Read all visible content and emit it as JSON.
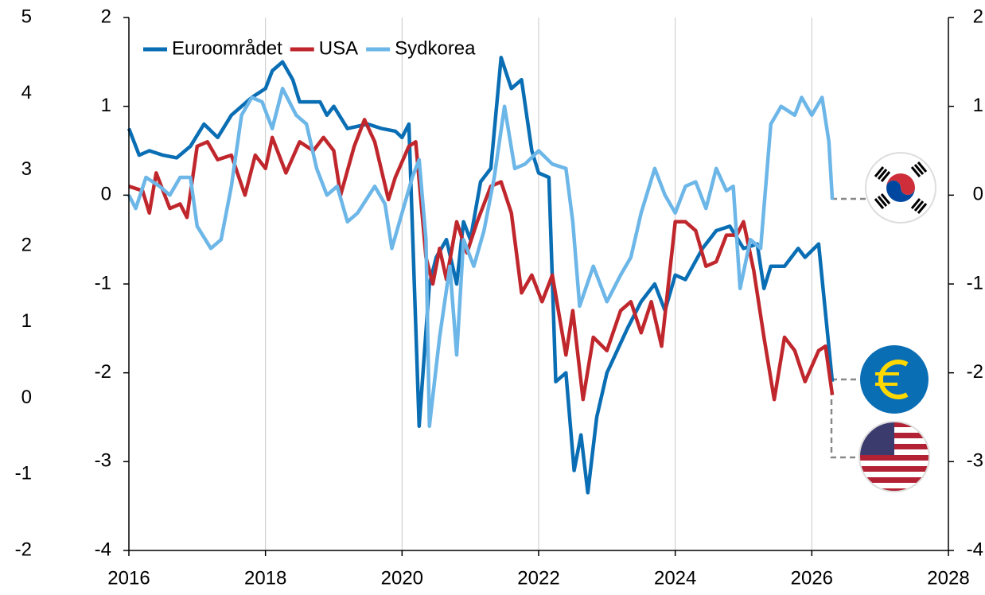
{
  "chart_data": {
    "type": "line",
    "xlim": [
      2016,
      2028
    ],
    "xticks": [
      2016,
      2018,
      2020,
      2022,
      2024,
      2026,
      2028
    ],
    "ylim": [
      -4,
      2
    ],
    "yticks": [
      2,
      1,
      0,
      -1,
      -2,
      -3,
      -4
    ],
    "y2lim": [
      -4,
      2
    ],
    "y2ticks": [
      2,
      1,
      0,
      -1,
      -2,
      -3,
      -4
    ],
    "y3lim": [
      -2,
      5
    ],
    "y3ticks": [
      5,
      4,
      3,
      2,
      1,
      0,
      -1,
      -2
    ],
    "grid": true,
    "legend": "upper left",
    "series": [
      {
        "name": "Euroområdet",
        "color": "#0a6eb4",
        "x": [
          2016.0,
          2016.15,
          2016.3,
          2016.5,
          2016.7,
          2016.9,
          2017.1,
          2017.3,
          2017.5,
          2017.8,
          2018.0,
          2018.1,
          2018.25,
          2018.4,
          2018.5,
          2018.8,
          2018.9,
          2019.0,
          2019.2,
          2019.5,
          2019.7,
          2019.9,
          2020.0,
          2020.1,
          2020.25,
          2020.4,
          2020.5,
          2020.65,
          2020.8,
          2020.9,
          2021.0,
          2021.15,
          2021.3,
          2021.45,
          2021.6,
          2021.75,
          2021.9,
          2022.0,
          2022.15,
          2022.25,
          2022.4,
          2022.52,
          2022.62,
          2022.72,
          2022.85,
          2023.0,
          2023.3,
          2023.5,
          2023.7,
          2023.85,
          2024.0,
          2024.15,
          2024.4,
          2024.6,
          2024.8,
          2025.0,
          2025.2,
          2025.3,
          2025.4,
          2025.6,
          2025.8,
          2025.9,
          2026.1,
          2026.3
        ],
        "values": [
          0.75,
          0.45,
          0.5,
          0.45,
          0.42,
          0.55,
          0.8,
          0.65,
          0.9,
          1.1,
          1.2,
          1.4,
          1.5,
          1.3,
          1.05,
          1.05,
          0.9,
          1.0,
          0.75,
          0.8,
          0.75,
          0.72,
          0.65,
          0.8,
          -2.6,
          -1.0,
          -0.7,
          -0.5,
          -1.0,
          -0.3,
          -0.5,
          0.15,
          0.3,
          1.55,
          1.2,
          1.3,
          0.5,
          0.25,
          0.2,
          -2.1,
          -2.0,
          -3.1,
          -2.7,
          -3.35,
          -2.5,
          -2.0,
          -1.5,
          -1.2,
          -1.0,
          -1.3,
          -0.9,
          -0.95,
          -0.6,
          -0.4,
          -0.35,
          -0.6,
          -0.55,
          -1.05,
          -0.8,
          -0.8,
          -0.6,
          -0.7,
          -0.55,
          -2.1
        ]
      },
      {
        "name": "USA",
        "color": "#c0272d",
        "x": [
          2016.0,
          2016.2,
          2016.3,
          2016.4,
          2016.6,
          2016.75,
          2016.85,
          2017.0,
          2017.15,
          2017.3,
          2017.5,
          2017.7,
          2017.85,
          2018.0,
          2018.1,
          2018.3,
          2018.5,
          2018.7,
          2018.85,
          2019.0,
          2019.1,
          2019.3,
          2019.45,
          2019.6,
          2019.8,
          2019.9,
          2020.1,
          2020.2,
          2020.35,
          2020.45,
          2020.55,
          2020.65,
          2020.8,
          2020.95,
          2021.1,
          2021.3,
          2021.45,
          2021.6,
          2021.75,
          2021.9,
          2022.05,
          2022.2,
          2022.4,
          2022.5,
          2022.65,
          2022.8,
          2023.0,
          2023.2,
          2023.35,
          2023.5,
          2023.65,
          2023.8,
          2024.0,
          2024.15,
          2024.3,
          2024.45,
          2024.6,
          2024.75,
          2024.9,
          2025.0,
          2025.15,
          2025.3,
          2025.45,
          2025.6,
          2025.75,
          2025.9,
          2026.1,
          2026.2,
          2026.3
        ],
        "values": [
          0.1,
          0.05,
          -0.2,
          0.25,
          -0.15,
          -0.1,
          -0.25,
          0.55,
          0.6,
          0.4,
          0.45,
          0.0,
          0.45,
          0.3,
          0.65,
          0.25,
          0.6,
          0.5,
          0.65,
          0.5,
          0.0,
          0.55,
          0.85,
          0.6,
          -0.05,
          0.2,
          0.55,
          0.6,
          -0.7,
          -1.0,
          -0.6,
          -0.95,
          -0.3,
          -0.65,
          -0.3,
          0.1,
          0.15,
          -0.2,
          -1.1,
          -0.9,
          -1.2,
          -0.9,
          -1.8,
          -1.3,
          -2.3,
          -1.6,
          -1.75,
          -1.3,
          -1.2,
          -1.55,
          -1.2,
          -1.7,
          -0.3,
          -0.3,
          -0.4,
          -0.8,
          -0.75,
          -0.45,
          -0.45,
          -0.3,
          -0.85,
          -1.6,
          -2.3,
          -1.6,
          -1.75,
          -2.1,
          -1.75,
          -1.7,
          -2.25
        ]
      },
      {
        "name": "Sydkorea",
        "color": "#6cb6e8",
        "x": [
          2016.0,
          2016.1,
          2016.25,
          2016.45,
          2016.6,
          2016.75,
          2016.9,
          2017.0,
          2017.2,
          2017.35,
          2017.5,
          2017.65,
          2017.8,
          2017.95,
          2018.1,
          2018.25,
          2018.45,
          2018.6,
          2018.75,
          2018.9,
          2019.05,
          2019.2,
          2019.35,
          2019.6,
          2019.75,
          2019.85,
          2020.0,
          2020.15,
          2020.25,
          2020.35,
          2020.4,
          2020.55,
          2020.7,
          2020.8,
          2020.9,
          2021.05,
          2021.2,
          2021.35,
          2021.5,
          2021.65,
          2021.8,
          2022.0,
          2022.2,
          2022.4,
          2022.5,
          2022.6,
          2022.8,
          2023.0,
          2023.2,
          2023.35,
          2023.5,
          2023.7,
          2023.85,
          2024.0,
          2024.15,
          2024.3,
          2024.45,
          2024.6,
          2024.75,
          2024.85,
          2024.95,
          2025.1,
          2025.25,
          2025.4,
          2025.55,
          2025.75,
          2025.85,
          2026.0,
          2026.15,
          2026.25,
          2026.3
        ],
        "values": [
          0.0,
          -0.15,
          0.2,
          0.1,
          0.0,
          0.2,
          0.2,
          -0.35,
          -0.6,
          -0.5,
          0.1,
          0.9,
          1.1,
          1.05,
          0.75,
          1.2,
          0.9,
          0.8,
          0.3,
          0.0,
          0.1,
          -0.3,
          -0.2,
          0.1,
          -0.1,
          -0.6,
          -0.2,
          0.2,
          0.4,
          -0.5,
          -2.6,
          -1.6,
          -0.8,
          -1.8,
          -0.5,
          -0.8,
          -0.4,
          0.2,
          1.0,
          0.3,
          0.35,
          0.5,
          0.35,
          0.3,
          -0.3,
          -1.25,
          -0.8,
          -1.2,
          -0.9,
          -0.7,
          -0.2,
          0.3,
          0.0,
          -0.2,
          0.1,
          0.15,
          -0.15,
          0.3,
          0.05,
          0.1,
          -1.05,
          -0.5,
          -0.6,
          0.8,
          1.0,
          0.9,
          1.1,
          0.9,
          1.1,
          0.6,
          -0.05
        ]
      }
    ]
  }
}
